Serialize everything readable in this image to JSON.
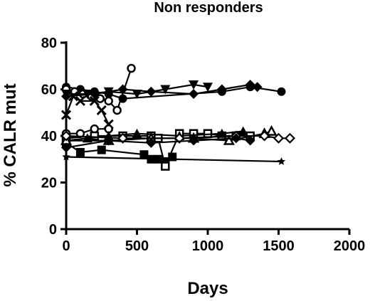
{
  "chart_data": {
    "type": "line",
    "title": "Non responders",
    "xlabel": "Days",
    "ylabel": "% CALR mut",
    "xlim": [
      0,
      2000
    ],
    "ylim": [
      0,
      80
    ],
    "xticks": [
      0,
      500,
      1000,
      1500,
      2000
    ],
    "yticks": [
      0,
      20,
      40,
      60,
      80
    ],
    "grid": false,
    "legend": "none",
    "color": "#000000",
    "series": [
      {
        "marker": "filled-circle",
        "x": [
          0,
          100,
          200,
          300,
          400,
          1100,
          1300,
          1520
        ],
        "y": [
          61,
          60,
          59,
          58,
          56,
          59,
          61,
          59
        ]
      },
      {
        "marker": "open-circle",
        "x": [
          0,
          60,
          120,
          180,
          240,
          300,
          360,
          460
        ],
        "y": [
          60,
          59,
          58,
          57,
          56,
          55,
          51,
          69
        ]
      },
      {
        "marker": "filled-triangle-down",
        "x": [
          0,
          150,
          300,
          500,
          700,
          900,
          1000
        ],
        "y": [
          58,
          58,
          59,
          58,
          60,
          62,
          61
        ]
      },
      {
        "marker": "filled-diamond",
        "x": [
          0,
          200,
          400,
          600,
          900,
          1100,
          1300,
          1350
        ],
        "y": [
          57,
          58,
          60,
          59,
          58,
          60,
          62,
          61
        ]
      },
      {
        "marker": "x-cross",
        "x": [
          0,
          50,
          100,
          200,
          250,
          300
        ],
        "y": [
          49,
          57,
          55,
          55,
          51,
          45
        ]
      },
      {
        "marker": "open-circle",
        "x": [
          0,
          100,
          200,
          300
        ],
        "y": [
          41,
          41,
          43,
          43
        ]
      },
      {
        "marker": "filled-square",
        "x": [
          0,
          100,
          250,
          550,
          600,
          650,
          700,
          750
        ],
        "y": [
          37,
          33,
          34,
          32,
          30,
          30,
          29,
          31
        ]
      },
      {
        "marker": "open-square",
        "x": [
          0,
          200,
          400,
          600,
          650,
          700,
          800,
          900,
          1000,
          1100,
          1200,
          1300
        ],
        "y": [
          39,
          40,
          40,
          40,
          39,
          27,
          41,
          41,
          41,
          40,
          40,
          40
        ]
      },
      {
        "marker": "filled-triangle-up",
        "x": [
          0,
          150,
          300,
          500,
          800,
          1100,
          1250
        ],
        "y": [
          38,
          39,
          40,
          41,
          40,
          41,
          42
        ]
      },
      {
        "marker": "open-triangle-up",
        "x": [
          0,
          300,
          600,
          900,
          1150,
          1400,
          1450
        ],
        "y": [
          38,
          38,
          39,
          39,
          38,
          41,
          42
        ]
      },
      {
        "marker": "open-diamond",
        "x": [
          0,
          400,
          800,
          1200,
          1400,
          1500,
          1580
        ],
        "y": [
          40,
          39,
          39,
          40,
          40,
          39,
          39
        ]
      },
      {
        "marker": "filled-diamond",
        "x": [
          0,
          300,
          600,
          900,
          1200,
          1300
        ],
        "y": [
          35,
          38,
          37,
          38,
          39,
          38
        ]
      },
      {
        "marker": "star",
        "x": [
          0,
          1520
        ],
        "y": [
          31,
          29
        ]
      }
    ]
  }
}
